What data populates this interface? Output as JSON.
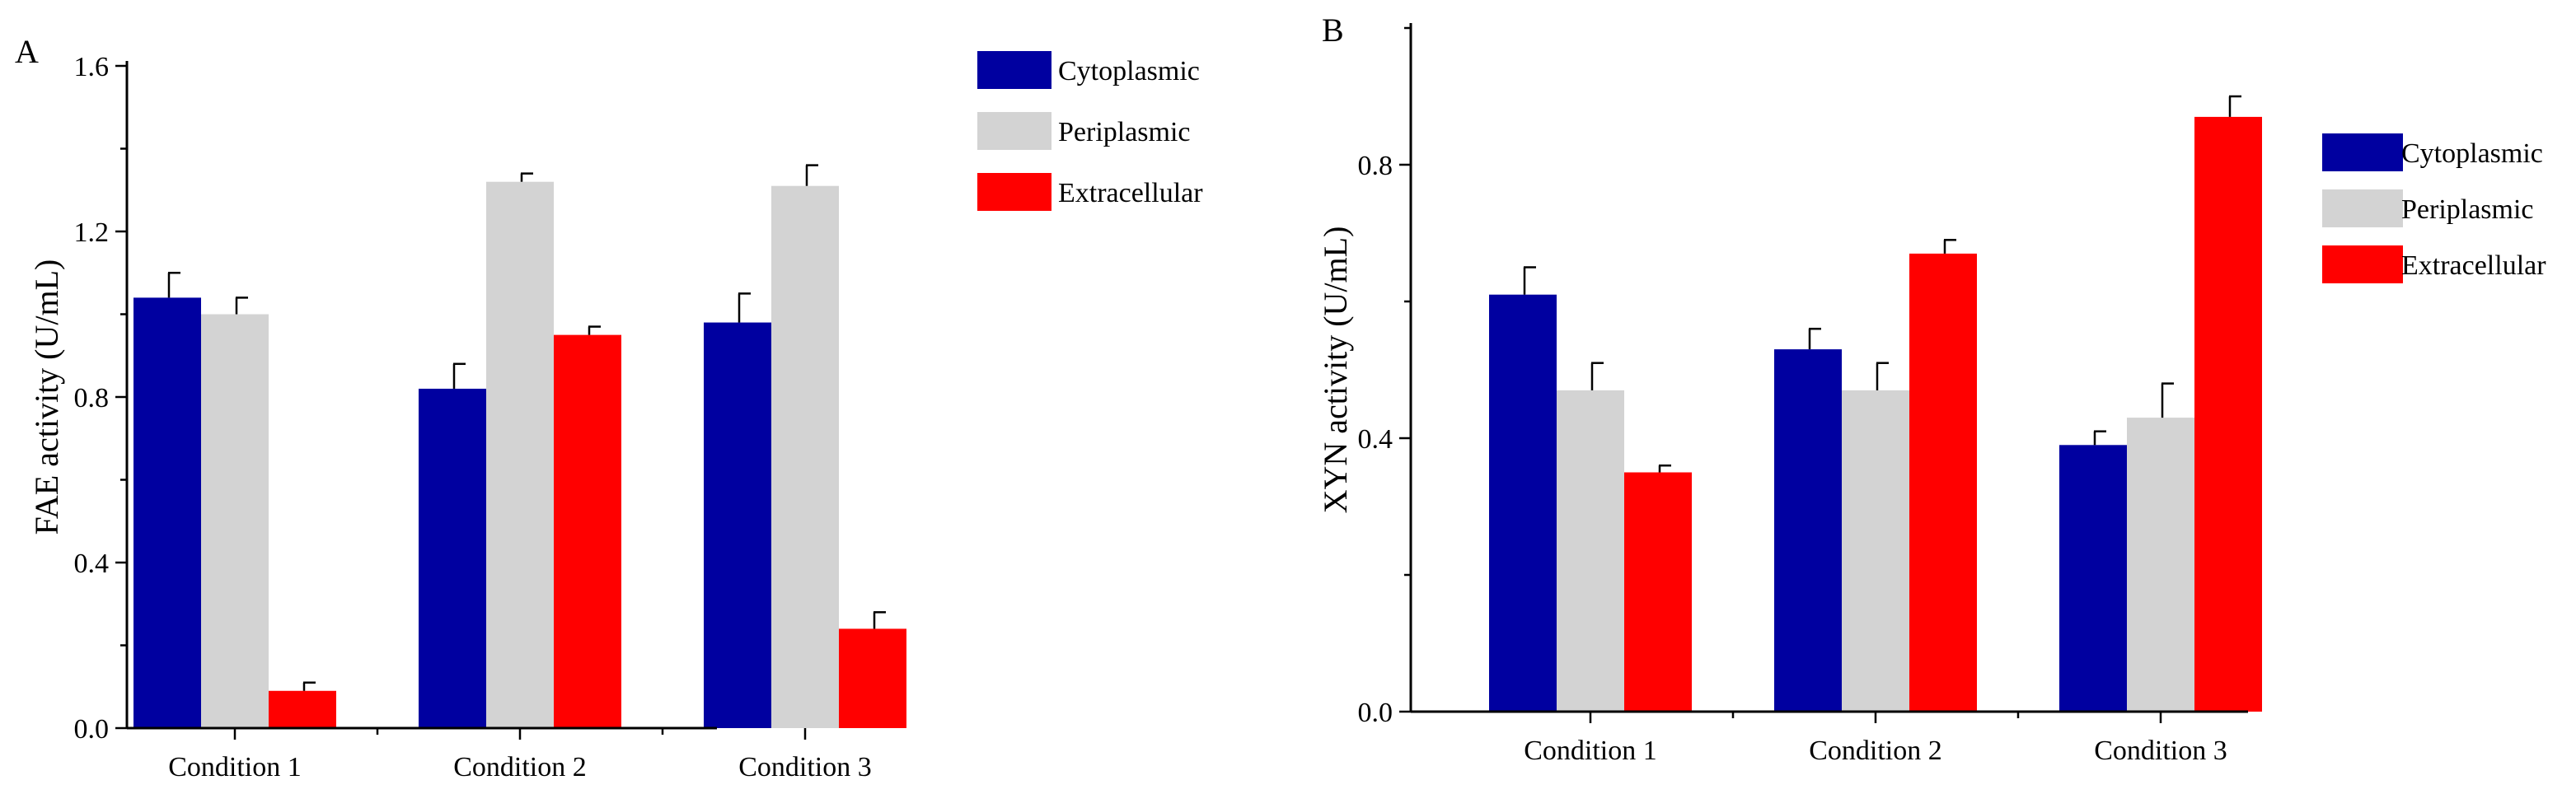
{
  "chart_data": [
    {
      "panel": "A",
      "type": "bar",
      "title": "",
      "xlabel": "",
      "ylabel": "FAE activity (U/mL)",
      "ylim": [
        0,
        1.6
      ],
      "yticks": [
        "0.0",
        "0.4",
        "0.8",
        "1.2",
        "1.6"
      ],
      "categories": [
        "Condition 1",
        "Condition 2",
        "Condition 3"
      ],
      "legend_position": "top-right",
      "series": [
        {
          "name": "Cytoplasmic",
          "color": "#0000a0",
          "values": [
            1.04,
            0.82,
            0.98
          ],
          "errors": [
            0.06,
            0.06,
            0.07
          ]
        },
        {
          "name": "Periplasmic",
          "color": "#d3d3d3",
          "values": [
            1.0,
            1.32,
            1.31
          ],
          "errors": [
            0.04,
            0.02,
            0.05
          ]
        },
        {
          "name": "Extracellular",
          "color": "#ff0000",
          "values": [
            0.09,
            0.95,
            0.24
          ],
          "errors": [
            0.02,
            0.02,
            0.04
          ]
        }
      ]
    },
    {
      "panel": "B",
      "type": "bar",
      "title": "",
      "xlabel": "",
      "ylabel": "XYN activity (U/mL)",
      "ylim": [
        0,
        1.0
      ],
      "yticks": [
        "0.0",
        "0.4",
        "0.8"
      ],
      "categories": [
        "Condition 1",
        "Condition 2",
        "Condition 3"
      ],
      "legend_position": "right",
      "series": [
        {
          "name": "Cytoplasmic",
          "color": "#0000a0",
          "values": [
            0.61,
            0.53,
            0.39
          ],
          "errors": [
            0.04,
            0.03,
            0.02
          ]
        },
        {
          "name": "Periplasmic",
          "color": "#d3d3d3",
          "values": [
            0.47,
            0.47,
            0.43
          ],
          "errors": [
            0.04,
            0.04,
            0.05
          ]
        },
        {
          "name": "Extracellular",
          "color": "#ff0000",
          "values": [
            0.35,
            0.67,
            0.87
          ],
          "errors": [
            0.01,
            0.02,
            0.03
          ]
        }
      ]
    }
  ]
}
